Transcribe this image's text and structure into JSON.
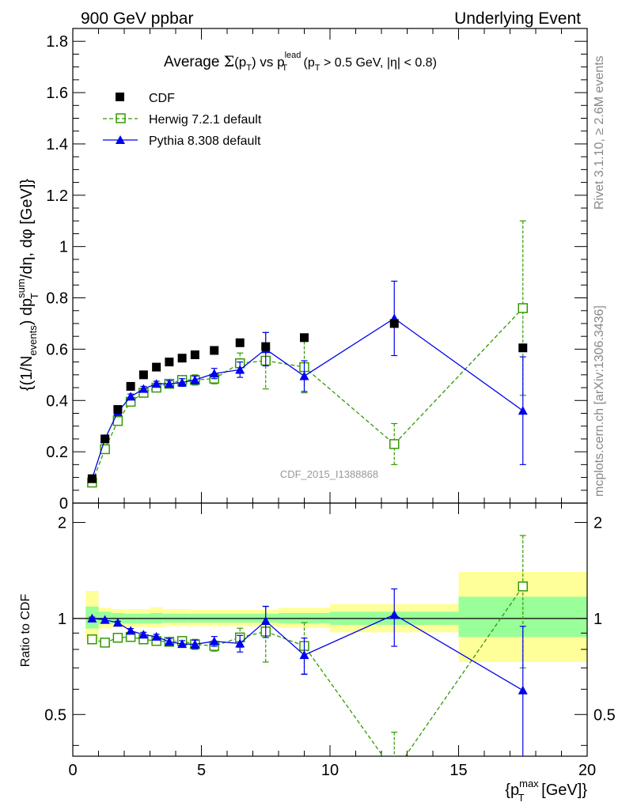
{
  "header": {
    "left": "900 GeV ppbar",
    "right": "Underlying Event"
  },
  "side_text": {
    "rivet": "Rivet 3.1.10, ≥ 2.6M events",
    "mcplots": "mcplots.cern.ch [arXiv:1306.3436]"
  },
  "watermark": "CDF_2015_I1388868",
  "main_title": {
    "prefix": "Average ",
    "sigma": "Σ",
    "pt": "(p",
    "pt_sub": "T",
    "pt_close": ")",
    "vs": " vs p",
    "lead_sup": "lead",
    "lead_sub": "T",
    "cut": " (p",
    "cut_sub": "T",
    "cut_rest": " > 0.5 GeV, |η| < 0.8)"
  },
  "ylabel_main": {
    "p1": "{(1/N",
    "p1_sub": "events",
    "p2": ") dp",
    "p2_sup": "sum",
    "p2_sub": "T",
    "p3": "/dη, dφ [GeV]}"
  },
  "ylabel_ratio": "Ratio to CDF",
  "xlabel": {
    "p1": "{p",
    "sup": "max",
    "sub": "T",
    "p2": " [GeV]}"
  },
  "colors": {
    "cdf": "#000000",
    "herwig": "#339900",
    "pythia": "#0000ee",
    "band_inner": "#99ff99",
    "band_outer": "#ffff99"
  },
  "chart_data": [
    {
      "type": "scatter",
      "panel": "main",
      "xlim": [
        0,
        20
      ],
      "ylim": [
        0,
        1.85
      ],
      "yticks": [
        "0",
        "0.2",
        "0.4",
        "0.6",
        "0.8",
        "1",
        "1.2",
        "1.4",
        "1.6",
        "1.8"
      ],
      "xticks": [
        "0",
        "5",
        "10",
        "15",
        "20"
      ],
      "legend": [
        "CDF",
        "Herwig 7.2.1 default",
        "Pythia 8.308 default"
      ],
      "series": [
        {
          "name": "CDF",
          "x": [
            0.75,
            1.25,
            1.75,
            2.25,
            2.75,
            3.25,
            3.75,
            4.25,
            4.75,
            5.5,
            6.5,
            7.5,
            9.0,
            12.5,
            17.5
          ],
          "y": [
            0.095,
            0.25,
            0.365,
            0.455,
            0.5,
            0.53,
            0.55,
            0.565,
            0.578,
            0.595,
            0.625,
            0.61,
            0.645,
            0.7,
            0.605
          ]
        },
        {
          "name": "Herwig 7.2.1 default",
          "x": [
            0.75,
            1.25,
            1.75,
            2.25,
            2.75,
            3.25,
            3.75,
            4.25,
            4.75,
            5.5,
            6.5,
            7.5,
            9.0,
            12.5,
            17.5
          ],
          "y": [
            0.08,
            0.21,
            0.32,
            0.395,
            0.43,
            0.45,
            0.465,
            0.48,
            0.48,
            0.485,
            0.545,
            0.555,
            0.53,
            0.23,
            0.76
          ],
          "err": [
            0.01,
            0.01,
            0.01,
            0.01,
            0.01,
            0.01,
            0.015,
            0.015,
            0.02,
            0.02,
            0.04,
            0.11,
            0.1,
            0.08,
            0.34
          ]
        },
        {
          "name": "Pythia 8.308 default",
          "x": [
            0.75,
            1.25,
            1.75,
            2.25,
            2.75,
            3.25,
            3.75,
            4.25,
            4.75,
            5.5,
            6.5,
            7.5,
            9.0,
            12.5,
            17.5
          ],
          "y": [
            0.095,
            0.25,
            0.355,
            0.415,
            0.445,
            0.465,
            0.465,
            0.47,
            0.48,
            0.505,
            0.52,
            0.6,
            0.495,
            0.72,
            0.36
          ],
          "err": [
            0.005,
            0.005,
            0.008,
            0.01,
            0.01,
            0.01,
            0.012,
            0.015,
            0.015,
            0.02,
            0.03,
            0.065,
            0.06,
            0.145,
            0.21
          ]
        }
      ]
    },
    {
      "type": "scatter",
      "panel": "ratio",
      "xlim": [
        0,
        20
      ],
      "ylim": [
        0.37,
        2.3
      ],
      "yticks": [
        "0.5",
        "1",
        "2"
      ],
      "xticks": [
        "0",
        "5",
        "10",
        "15",
        "20"
      ],
      "bands": {
        "edges": [
          0.5,
          1.0,
          1.5,
          2.0,
          2.5,
          3.0,
          3.5,
          4.0,
          4.5,
          5.0,
          6.0,
          7.0,
          8.0,
          10.0,
          15.0,
          20.0
        ],
        "inner": [
          [
            0.93,
            1.09
          ],
          [
            0.96,
            1.05
          ],
          [
            0.965,
            1.04
          ],
          [
            0.965,
            1.035
          ],
          [
            0.965,
            1.035
          ],
          [
            0.965,
            1.04
          ],
          [
            0.97,
            1.035
          ],
          [
            0.97,
            1.035
          ],
          [
            0.97,
            1.035
          ],
          [
            0.97,
            1.035
          ],
          [
            0.97,
            1.035
          ],
          [
            0.97,
            1.035
          ],
          [
            0.965,
            1.04
          ],
          [
            0.955,
            1.05
          ],
          [
            0.875,
            1.17
          ]
        ],
        "outer": [
          [
            0.86,
            1.22
          ],
          [
            0.93,
            1.08
          ],
          [
            0.94,
            1.07
          ],
          [
            0.94,
            1.07
          ],
          [
            0.94,
            1.07
          ],
          [
            0.94,
            1.085
          ],
          [
            0.945,
            1.07
          ],
          [
            0.945,
            1.07
          ],
          [
            0.945,
            1.065
          ],
          [
            0.945,
            1.065
          ],
          [
            0.945,
            1.065
          ],
          [
            0.945,
            1.065
          ],
          [
            0.935,
            1.08
          ],
          [
            0.905,
            1.11
          ],
          [
            0.73,
            1.4
          ]
        ]
      },
      "series": [
        {
          "name": "Herwig 7.2.1 default",
          "x": [
            0.75,
            1.25,
            1.75,
            2.25,
            2.75,
            3.25,
            3.75,
            4.25,
            4.75,
            5.5,
            6.5,
            7.5,
            9.0,
            12.5,
            17.5
          ],
          "y": [
            0.86,
            0.84,
            0.87,
            0.875,
            0.86,
            0.85,
            0.845,
            0.85,
            0.83,
            0.82,
            0.872,
            0.91,
            0.82,
            0.33,
            1.26
          ],
          "err": [
            0.01,
            0.01,
            0.01,
            0.015,
            0.015,
            0.015,
            0.02,
            0.02,
            0.03,
            0.03,
            0.06,
            0.18,
            0.15,
            0.11,
            0.56
          ]
        },
        {
          "name": "Pythia 8.308 default",
          "x": [
            0.75,
            1.25,
            1.75,
            2.25,
            2.75,
            3.25,
            3.75,
            4.25,
            4.75,
            5.5,
            6.5,
            7.5,
            9.0,
            12.5,
            17.5
          ],
          "y": [
            1.0,
            0.99,
            0.97,
            0.915,
            0.89,
            0.877,
            0.845,
            0.832,
            0.83,
            0.848,
            0.835,
            0.982,
            0.768,
            1.028,
            0.595
          ],
          "err": [
            0.01,
            0.01,
            0.01,
            0.015,
            0.015,
            0.015,
            0.02,
            0.02,
            0.025,
            0.03,
            0.05,
            0.11,
            0.1,
            0.21,
            0.35
          ]
        }
      ]
    }
  ]
}
